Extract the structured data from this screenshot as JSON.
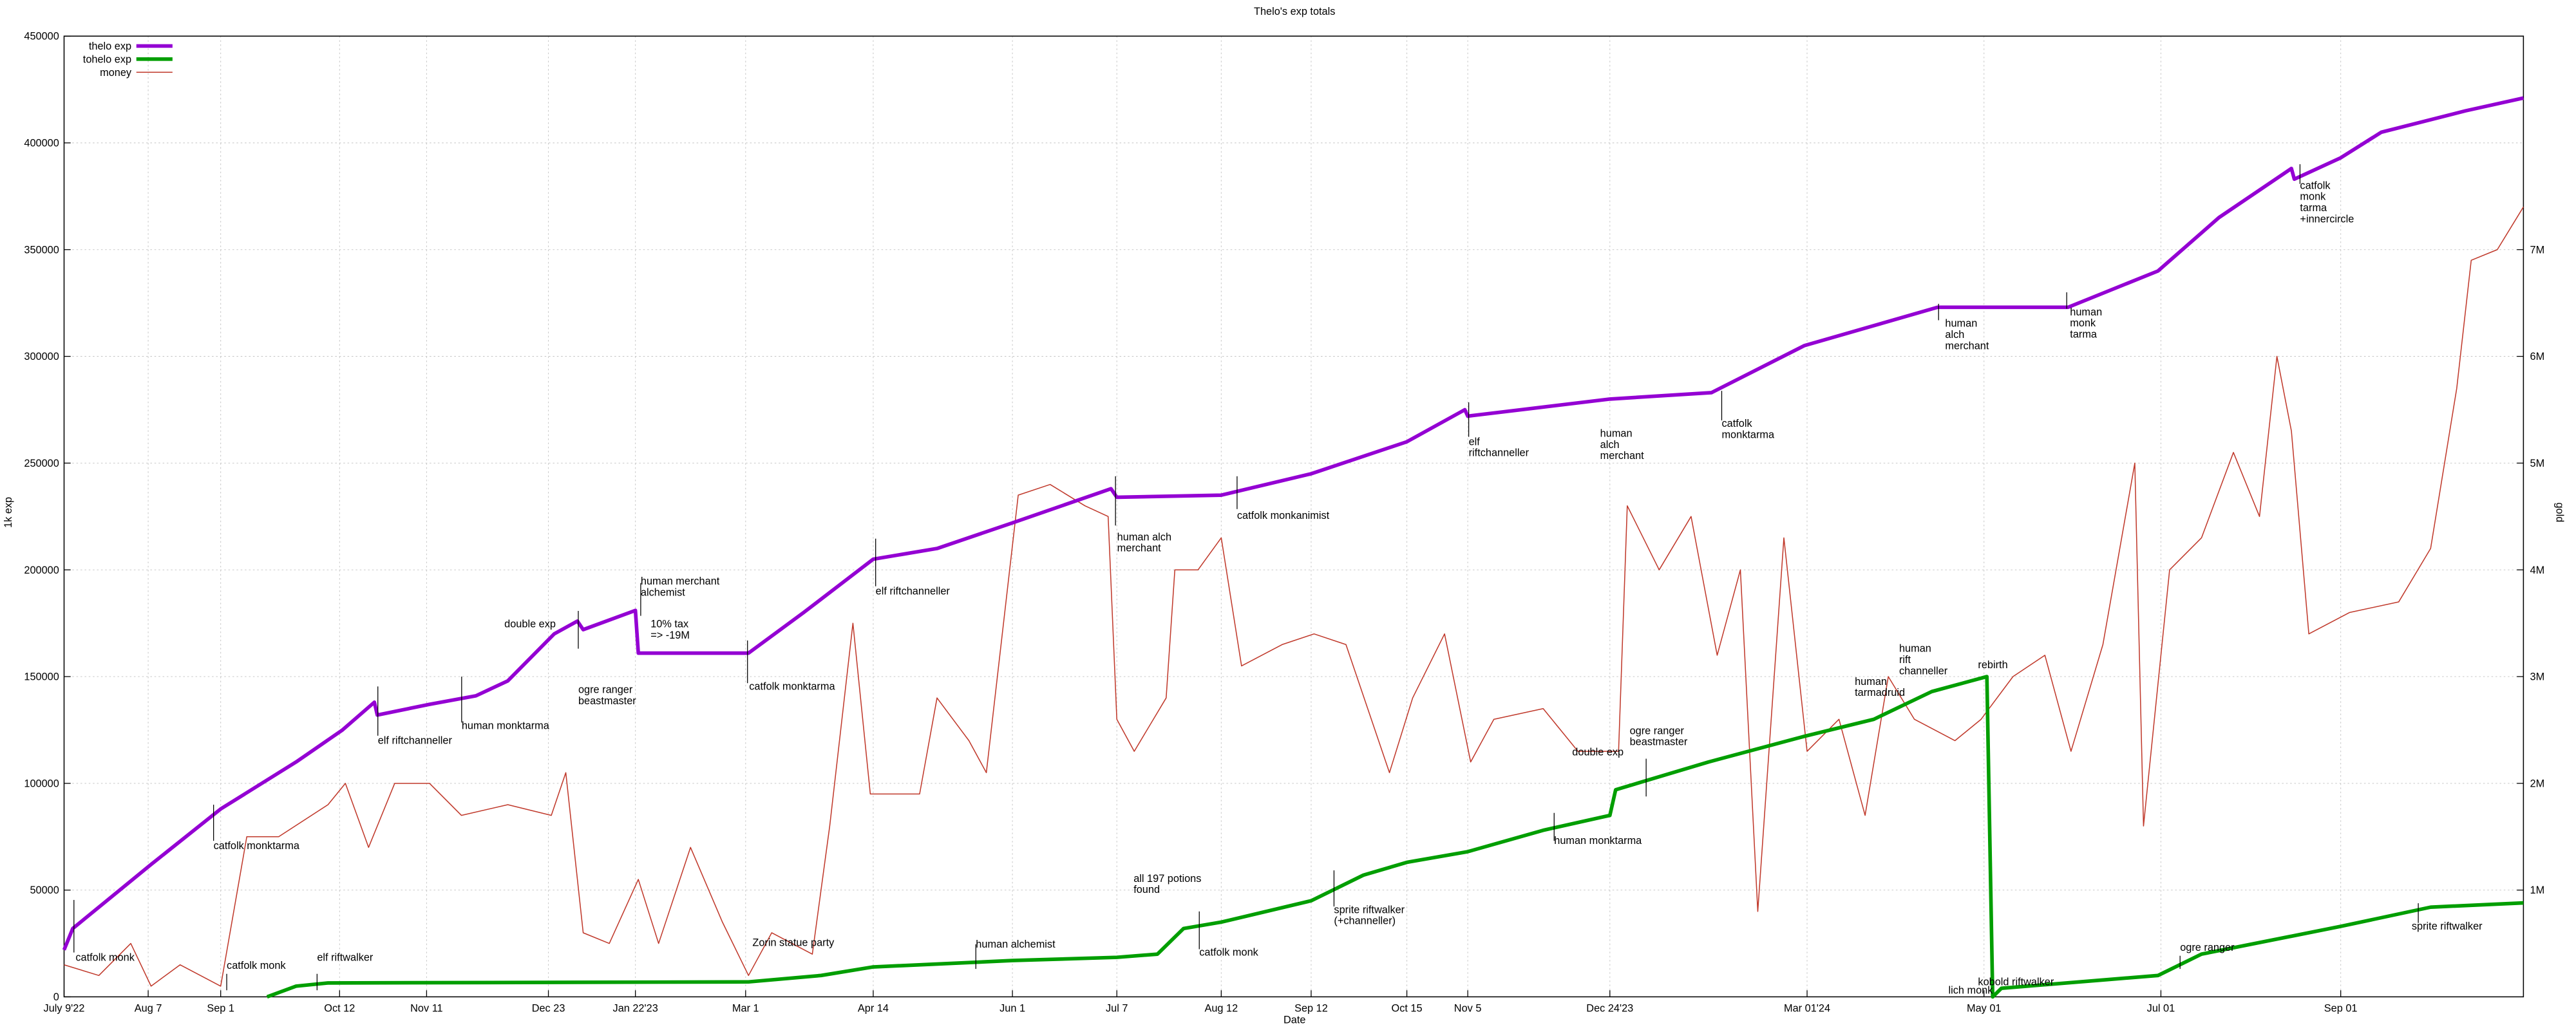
{
  "chart_data": {
    "type": "line",
    "title": "Thelo's exp totals",
    "xlabel": "Date",
    "ylabel": "1k exp",
    "y2label": "gold",
    "xlim": [
      "2022-07-09",
      "2024-11-03"
    ],
    "xticks": [
      {
        "value": "2022-07-09",
        "label": "July 9'22"
      },
      {
        "value": "2022-08-07",
        "label": "Aug 7"
      },
      {
        "value": "2022-09-01",
        "label": "Sep 1"
      },
      {
        "value": "2022-10-12",
        "label": "Oct 12"
      },
      {
        "value": "2022-11-11",
        "label": "Nov 11"
      },
      {
        "value": "2022-12-23",
        "label": "Dec 23"
      },
      {
        "value": "2023-01-22",
        "label": "Jan 22'23"
      },
      {
        "value": "2023-03-01",
        "label": "Mar 1"
      },
      {
        "value": "2023-04-14",
        "label": "Apr 14"
      },
      {
        "value": "2023-06-01",
        "label": "Jun 1"
      },
      {
        "value": "2023-07-07",
        "label": "Jul 7"
      },
      {
        "value": "2023-08-12",
        "label": "Aug 12"
      },
      {
        "value": "2023-09-12",
        "label": "Sep 12"
      },
      {
        "value": "2023-10-15",
        "label": "Oct 15"
      },
      {
        "value": "2023-11-05",
        "label": "Nov 5"
      },
      {
        "value": "2023-12-24",
        "label": "Dec 24'23"
      },
      {
        "value": "2024-03-01",
        "label": "Mar 01'24"
      },
      {
        "value": "2024-05-01",
        "label": "May 01"
      },
      {
        "value": "2024-07-01",
        "label": "Jul 01"
      },
      {
        "value": "2024-09-01",
        "label": "Sep 01"
      }
    ],
    "ylim": [
      0,
      450000
    ],
    "yticks": [
      0,
      50000,
      100000,
      150000,
      200000,
      250000,
      300000,
      350000,
      400000,
      450000
    ],
    "y2lim": [
      0,
      9000000
    ],
    "y2ticks": [
      {
        "value": 1000000,
        "label": "1M"
      },
      {
        "value": 2000000,
        "label": "2M"
      },
      {
        "value": 3000000,
        "label": "3M"
      },
      {
        "value": 4000000,
        "label": "4M"
      },
      {
        "value": 5000000,
        "label": "5M"
      },
      {
        "value": 6000000,
        "label": "6M"
      },
      {
        "value": 7000000,
        "label": "7M"
      }
    ],
    "grid": true,
    "legend": "top-left",
    "series": [
      {
        "name": "thelo exp",
        "color": "#9400d3",
        "width": 2.2,
        "x": [
          "2022-07-09",
          "2022-07-12",
          "2022-08-08",
          "2022-09-01",
          "2022-09-27",
          "2022-10-13",
          "2022-10-24",
          "2022-10-25",
          "2022-11-12",
          "2022-11-28",
          "2022-12-09",
          "2022-12-25",
          "2023-01-02",
          "2023-01-04",
          "2023-01-22",
          "2023-01-23",
          "2023-03-02",
          "2023-03-21",
          "2023-04-14",
          "2023-05-06",
          "2023-06-01",
          "2023-07-05",
          "2023-07-07",
          "2023-08-12",
          "2023-09-12",
          "2023-10-15",
          "2023-11-04",
          "2023-11-05",
          "2023-12-24",
          "2024-01-28",
          "2024-02-29",
          "2024-04-15",
          "2024-05-30",
          "2024-06-30",
          "2024-07-21",
          "2024-08-15",
          "2024-08-16",
          "2024-09-01",
          "2024-09-15",
          "2024-10-14",
          "2024-11-03"
        ],
        "values": [
          22000,
          32000,
          62000,
          88000,
          110000,
          125000,
          138000,
          132000,
          137000,
          141000,
          148000,
          170000,
          176000,
          172000,
          181000,
          161000,
          161000,
          180000,
          205000,
          210000,
          222000,
          238000,
          234000,
          235000,
          245000,
          260000,
          275000,
          272000,
          280000,
          283000,
          305000,
          323000,
          323000,
          340000,
          365000,
          388000,
          383000,
          393000,
          405000,
          415000,
          421000
        ]
      },
      {
        "name": "tohelo exp",
        "color": "#009e00",
        "width": 2.2,
        "x": [
          "2022-09-17",
          "2022-09-27",
          "2022-10-08",
          "2023-03-02",
          "2023-03-27",
          "2023-04-14",
          "2023-06-01",
          "2023-07-07",
          "2023-07-21",
          "2023-07-30",
          "2023-08-12",
          "2023-09-12",
          "2023-09-30",
          "2023-10-15",
          "2023-11-05",
          "2023-12-01",
          "2023-12-24",
          "2023-12-26",
          "2024-01-27",
          "2024-02-29",
          "2024-03-24",
          "2024-04-13",
          "2024-05-02",
          "2024-05-04",
          "2024-05-07",
          "2024-06-30",
          "2024-07-15",
          "2024-09-01",
          "2024-10-02",
          "2024-11-03"
        ],
        "values": [
          0,
          5000,
          6500,
          7000,
          10000,
          14000,
          17000,
          18500,
          20000,
          32000,
          35000,
          45000,
          57000,
          63000,
          68000,
          78000,
          85000,
          97000,
          110000,
          122000,
          130000,
          143000,
          150000,
          0,
          4000,
          10000,
          20000,
          33000,
          42000,
          44000
        ]
      },
      {
        "name": "money",
        "color": "#c0392b",
        "width": 0.6,
        "axis": "y2",
        "x": [
          "2022-07-09",
          "2022-07-21",
          "2022-08-01",
          "2022-08-08",
          "2022-08-18",
          "2022-09-01",
          "2022-09-10",
          "2022-09-21",
          "2022-10-08",
          "2022-10-14",
          "2022-10-22",
          "2022-10-31",
          "2022-11-12",
          "2022-11-23",
          "2022-12-09",
          "2022-12-24",
          "2022-12-29",
          "2023-01-04",
          "2023-01-13",
          "2023-01-23",
          "2023-01-30",
          "2023-02-10",
          "2023-02-21",
          "2023-03-02",
          "2023-03-10",
          "2023-03-24",
          "2023-03-30",
          "2023-04-07",
          "2023-04-13",
          "2023-04-30",
          "2023-05-06",
          "2023-05-17",
          "2023-05-23",
          "2023-06-03",
          "2023-06-14",
          "2023-06-26",
          "2023-07-04",
          "2023-07-07",
          "2023-07-13",
          "2023-07-24",
          "2023-07-27",
          "2023-08-04",
          "2023-08-12",
          "2023-08-19",
          "2023-09-02",
          "2023-09-13",
          "2023-09-24",
          "2023-10-09",
          "2023-10-17",
          "2023-10-28",
          "2023-11-06",
          "2023-11-14",
          "2023-12-01",
          "2023-12-13",
          "2023-12-27",
          "2023-12-30",
          "2024-01-10",
          "2024-01-21",
          "2024-01-30",
          "2024-02-07",
          "2024-02-13",
          "2024-02-22",
          "2024-03-01",
          "2024-03-12",
          "2024-03-21",
          "2024-03-29",
          "2024-04-07",
          "2024-04-21",
          "2024-04-30",
          "2024-05-11",
          "2024-05-22",
          "2024-05-31",
          "2024-06-11",
          "2024-06-22",
          "2024-06-25",
          "2024-07-04",
          "2024-07-15",
          "2024-07-26",
          "2024-08-04",
          "2024-08-10",
          "2024-08-15",
          "2024-08-21",
          "2024-09-04",
          "2024-09-21",
          "2024-10-02",
          "2024-10-11",
          "2024-10-16",
          "2024-10-25",
          "2024-11-03"
        ],
        "values": [
          300000,
          200000,
          500000,
          100000,
          300000,
          100000,
          1500000,
          1500000,
          1800000,
          2000000,
          1400000,
          2000000,
          2000000,
          1700000,
          1800000,
          1700000,
          2100000,
          600000,
          500000,
          1100000,
          500000,
          1400000,
          700000,
          200000,
          600000,
          400000,
          1600000,
          3500000,
          1900000,
          1900000,
          2800000,
          2400000,
          2100000,
          4700000,
          4800000,
          4600000,
          4500000,
          2600000,
          2300000,
          2800000,
          4000000,
          4000000,
          4300000,
          3100000,
          3300000,
          3400000,
          3300000,
          2100000,
          2800000,
          3400000,
          2200000,
          2600000,
          2700000,
          2300000,
          2300000,
          4600000,
          4000000,
          4500000,
          3200000,
          4000000,
          800000,
          4300000,
          2300000,
          2600000,
          1700000,
          3000000,
          2600000,
          2400000,
          2600000,
          3000000,
          3200000,
          2300000,
          3300000,
          5000000,
          1600000,
          4000000,
          4300000,
          5100000,
          4500000,
          6000000,
          5300000,
          3400000,
          3600000,
          3700000,
          4200000,
          5700000,
          6900000,
          7000000,
          7400000
        ]
      }
    ],
    "annotations": [
      [
        "catfolk monk"
      ],
      [
        "catfolk monktarma"
      ],
      [
        "catfolk monk"
      ],
      [
        "elf riftwalker"
      ],
      [
        "elf riftchanneller"
      ],
      [
        "human monktarma"
      ],
      [
        "double exp"
      ],
      [
        "ogre ranger",
        "beastmaster"
      ],
      [
        "human merchant",
        "alchemist"
      ],
      [
        "10% tax",
        "=> -19M"
      ],
      [
        "catfolk monktarma"
      ],
      [
        "Zorin statue party"
      ],
      [
        "elf riftchanneller"
      ],
      [
        "human alchemist"
      ],
      [
        "human alch",
        "merchant"
      ],
      [
        "all 197 potions",
        "found"
      ],
      [
        "catfolk monk"
      ],
      [
        "catfolk monkanimist"
      ],
      [
        "sprite riftwalker",
        "(+channeller)"
      ],
      [
        "elf",
        "riftchanneller"
      ],
      [
        "human monktarma"
      ],
      [
        "double exp"
      ],
      [
        "human",
        "alch",
        "merchant"
      ],
      [
        "ogre ranger",
        "beastmaster"
      ],
      [
        "catfolk",
        "monktarma"
      ],
      [
        "human",
        "tarmadruid"
      ],
      [
        "human",
        "rift",
        "channeller"
      ],
      [
        "human",
        "alch",
        "merchant"
      ],
      [
        "rebirth"
      ],
      [
        "lich monk"
      ],
      [
        "kobold riftwalker"
      ],
      [
        "human",
        "monk",
        "tarma"
      ],
      [
        "ogre ranger"
      ],
      [
        "catfolk",
        "monk",
        "tarma",
        "+innercircle"
      ],
      [
        "sprite riftwalker"
      ]
    ]
  }
}
